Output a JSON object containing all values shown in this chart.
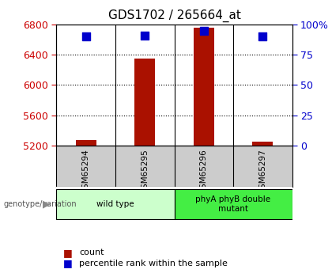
{
  "title": "GDS1702 / 265664_at",
  "samples": [
    "GSM65294",
    "GSM65295",
    "GSM65296",
    "GSM65297"
  ],
  "counts": [
    5270,
    6350,
    6760,
    5250
  ],
  "percentiles": [
    90,
    91,
    95,
    90
  ],
  "ylim_left": [
    5200,
    6800
  ],
  "ylim_right": [
    0,
    100
  ],
  "yticks_left": [
    5200,
    5600,
    6000,
    6400,
    6800
  ],
  "yticks_right": [
    0,
    25,
    50,
    75,
    100
  ],
  "groups": [
    {
      "label": "wild type",
      "indices": [
        0,
        1
      ],
      "color": "#ccffcc"
    },
    {
      "label": "phyA phyB double\nmutant",
      "indices": [
        2,
        3
      ],
      "color": "#44ee44"
    }
  ],
  "bar_color": "#aa1100",
  "dot_color": "#0000cc",
  "left_tick_color": "#cc0000",
  "right_tick_color": "#0000cc",
  "bg_color": "#ffffff",
  "sample_bg_color": "#cccccc",
  "bar_width": 0.35,
  "dot_size": 55,
  "genotype_label": "genotype/variation"
}
